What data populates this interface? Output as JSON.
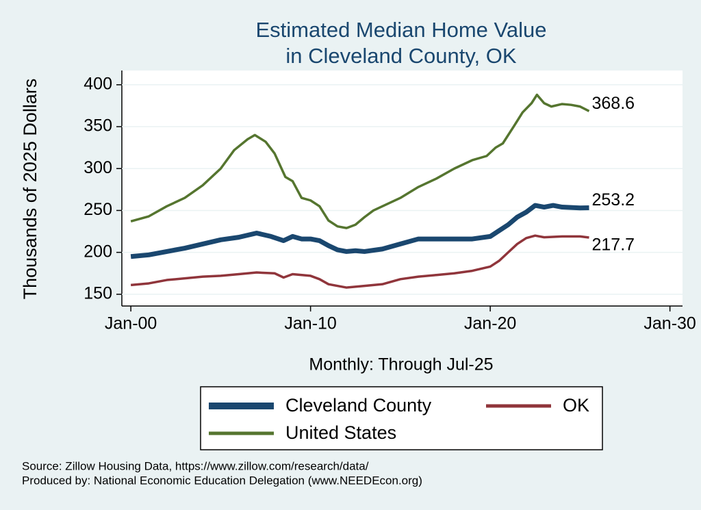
{
  "chart_data": {
    "type": "line",
    "title": "Estimated Median Home Value",
    "subtitle": "in Cleveland County, OK",
    "xlabel": "Monthly: Through Jul-25",
    "ylabel": "Thousands of 2025 Dollars",
    "notes": [
      "Source: Zillow Housing Data, https://www.zillow.com/research/data/",
      "Produced by: National Economic Education Delegation (www.NEEDEcon.org)"
    ],
    "xlim": [
      1999.5,
      2030.7
    ],
    "xticks": [
      {
        "value": 2000,
        "label": "Jan-00"
      },
      {
        "value": 2010,
        "label": "Jan-10"
      },
      {
        "value": 2020,
        "label": "Jan-20"
      },
      {
        "value": 2030,
        "label": "Jan-30"
      }
    ],
    "ylim": [
      136,
      417
    ],
    "yticks": [
      150,
      200,
      250,
      300,
      350,
      400
    ],
    "grid": true,
    "legend": "bottom",
    "series": [
      {
        "name": "Cleveland County",
        "color": "#1a476f",
        "x": [
          2000,
          2001,
          2002,
          2003,
          2004,
          2005,
          2006,
          2007,
          2007.8,
          2008.5,
          2009,
          2009.5,
          2010,
          2010.5,
          2011,
          2011.5,
          2012,
          2012.5,
          2013,
          2014,
          2015,
          2016,
          2017,
          2018,
          2019,
          2020,
          2020.5,
          2021,
          2021.5,
          2022,
          2022.5,
          2023,
          2023.5,
          2024,
          2025,
          2025.5
        ],
        "values": [
          195,
          197,
          201,
          205,
          210,
          215,
          218,
          223,
          219,
          214,
          219,
          216,
          216,
          214,
          208,
          203,
          201,
          202,
          201,
          204,
          210,
          216,
          216,
          216,
          216,
          219,
          226,
          233,
          242,
          248,
          256,
          254,
          256,
          254,
          253,
          253.2
        ]
      },
      {
        "name": "OK",
        "color": "#90353b",
        "x": [
          2000,
          2001,
          2002,
          2003,
          2004,
          2005,
          2006,
          2007,
          2008,
          2008.5,
          2009,
          2010,
          2010.5,
          2011,
          2012,
          2013,
          2014,
          2015,
          2016,
          2017,
          2018,
          2019,
          2020,
          2020.5,
          2021,
          2021.5,
          2022,
          2022.5,
          2023,
          2024,
          2025,
          2025.5
        ],
        "values": [
          161,
          163,
          167,
          169,
          171,
          172,
          174,
          176,
          175,
          170,
          174,
          172,
          168,
          162,
          158,
          160,
          162,
          168,
          171,
          173,
          175,
          178,
          183,
          190,
          200,
          210,
          217,
          220,
          218,
          219,
          219,
          217.7
        ]
      },
      {
        "name": "United States",
        "color": "#55752f",
        "x": [
          2000,
          2001,
          2002,
          2003,
          2004,
          2005,
          2005.75,
          2006.5,
          2006.9,
          2007.5,
          2008,
          2008.6,
          2009,
          2009.5,
          2010,
          2010.5,
          2011,
          2011.5,
          2012,
          2012.5,
          2013,
          2013.5,
          2014,
          2015,
          2016,
          2017,
          2018,
          2019,
          2019.8,
          2020.3,
          2020.7,
          2021.3,
          2021.8,
          2022.3,
          2022.6,
          2023,
          2023.4,
          2024,
          2024.5,
          2025,
          2025.5
        ],
        "values": [
          237,
          243,
          255,
          265,
          280,
          300,
          322,
          335,
          340,
          332,
          318,
          290,
          285,
          265,
          262,
          255,
          238,
          231,
          229,
          233,
          242,
          250,
          255,
          265,
          278,
          288,
          300,
          310,
          315,
          325,
          330,
          350,
          367,
          378,
          388,
          378,
          374,
          377,
          376,
          374,
          368.6
        ]
      }
    ]
  }
}
